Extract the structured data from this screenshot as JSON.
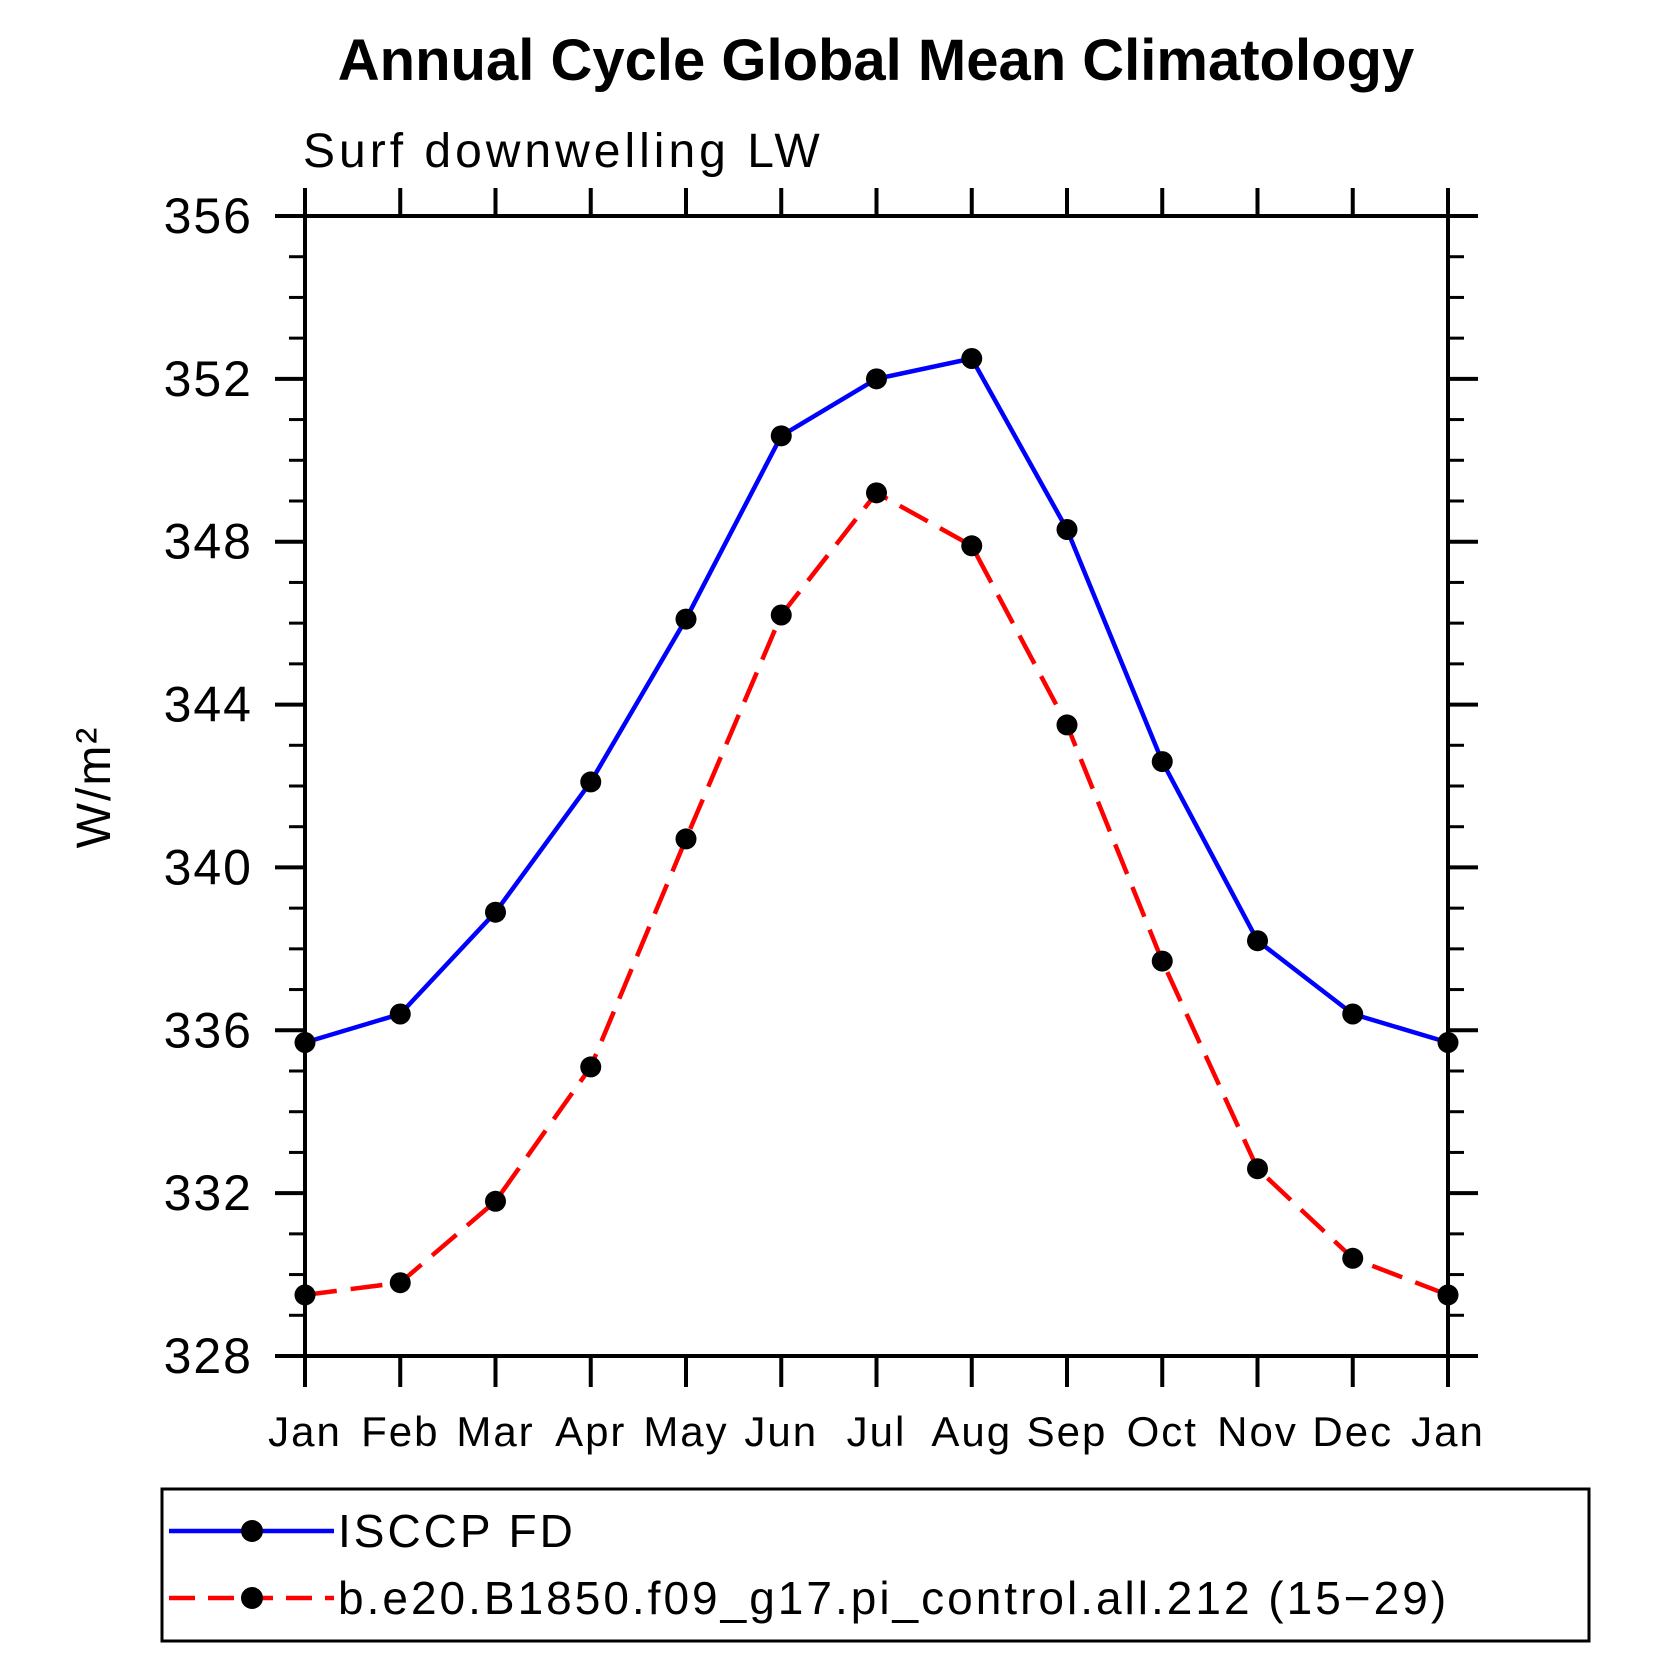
{
  "header": {
    "title": "Annual Cycle Global Mean Climatology",
    "subtitle": "Surf downwelling LW"
  },
  "axes": {
    "y": {
      "label": "W/m²",
      "min": 328,
      "max": 356,
      "major_step": 4,
      "minor_step": 1
    },
    "x": {
      "tick_labels": [
        "Jan",
        "Feb",
        "Mar",
        "Apr",
        "May",
        "Jun",
        "Jul",
        "Aug",
        "Sep",
        "Oct",
        "Nov",
        "Dec",
        "Jan"
      ]
    }
  },
  "chart_data": {
    "type": "line",
    "title": "Annual Cycle Global Mean Climatology",
    "subtitle": "Surf downwelling LW",
    "ylabel": "W/m²",
    "ylim": [
      328,
      356
    ],
    "grid": false,
    "legend_position": "bottom",
    "x_categories": [
      "Jan",
      "Feb",
      "Mar",
      "Apr",
      "May",
      "Jun",
      "Jul",
      "Aug",
      "Sep",
      "Oct",
      "Nov",
      "Dec",
      "Jan"
    ],
    "series": [
      {
        "name": "ISCCP FD",
        "color": "#0000ff",
        "style": "solid",
        "marker": "filled-circle",
        "marker_color": "#000000",
        "values": [
          335.7,
          336.4,
          338.9,
          342.1,
          346.1,
          350.6,
          352.0,
          352.5,
          348.3,
          342.6,
          338.2,
          336.4,
          335.7
        ]
      },
      {
        "name": "b.e20.B1850.f09_g17.pi_control.all.212 (15−29)",
        "color": "#ff0000",
        "style": "dashed",
        "marker": "filled-circle",
        "marker_color": "#000000",
        "values": [
          329.5,
          329.8,
          331.8,
          335.1,
          340.7,
          346.2,
          349.2,
          347.9,
          343.5,
          337.7,
          332.6,
          330.4,
          329.5
        ]
      }
    ]
  },
  "legend": {
    "entries": [
      {
        "label": "ISCCP FD",
        "color": "#0000ff",
        "style": "solid"
      },
      {
        "label": "b.e20.B1850.f09_g17.pi_control.all.212 (15−29)",
        "color": "#ff0000",
        "style": "dashed"
      }
    ]
  },
  "colors": {
    "frame": "#000000",
    "background": "#ffffff",
    "marker": "#000000",
    "isccp_line": "#0000ff",
    "model_line": "#ff0000"
  }
}
